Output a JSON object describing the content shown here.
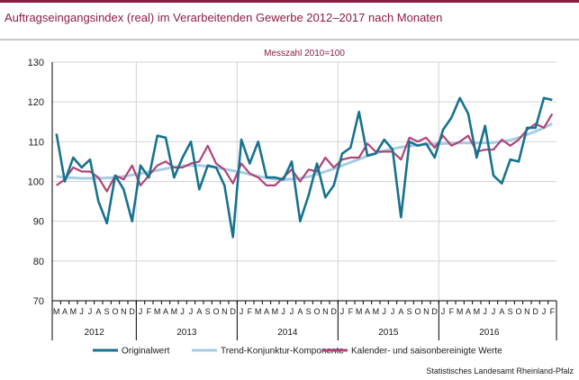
{
  "header": {
    "title": "Auftragseingangsindex (real) im Verarbeitenden Gewerbe 2012–2017 nach Monaten"
  },
  "source": "Statistisches Landesamt Rheinland-Pfalz",
  "colors": {
    "brand": "#8c1d40",
    "original": "#17728f",
    "trend": "#a8cde2",
    "seasonal": "#b04478"
  },
  "chart_data": {
    "type": "line",
    "subtitle": "Messzahl 2010=100",
    "ylim": [
      70,
      130
    ],
    "yticks": [
      70,
      80,
      90,
      100,
      110,
      120,
      130
    ],
    "grid": true,
    "legend_position": "bottom",
    "month_labels": [
      "M",
      "A",
      "M",
      "J",
      "J",
      "A",
      "S",
      "O",
      "N",
      "D",
      "J",
      "F",
      "M",
      "A",
      "M",
      "J",
      "J",
      "A",
      "S",
      "O",
      "N",
      "D",
      "J",
      "F",
      "M",
      "A",
      "M",
      "J",
      "J",
      "A",
      "S",
      "O",
      "N",
      "D",
      "J",
      "F",
      "M",
      "A",
      "M",
      "J",
      "J",
      "A",
      "S",
      "O",
      "N",
      "D",
      "J",
      "F",
      "M",
      "A",
      "M",
      "J",
      "J",
      "A",
      "S",
      "O",
      "N",
      "D",
      "J",
      "F"
    ],
    "year_labels": [
      {
        "label": "2012",
        "from": 0,
        "to": 9
      },
      {
        "label": "2013",
        "from": 10,
        "to": 21
      },
      {
        "label": "2014",
        "from": 22,
        "to": 33
      },
      {
        "label": "2015",
        "from": 34,
        "to": 45
      },
      {
        "label": "2016",
        "from": 46,
        "to": 57
      }
    ],
    "series": [
      {
        "name": "Originalwert",
        "values": [
          112.0,
          100.0,
          106.0,
          103.5,
          105.5,
          95.0,
          89.5,
          101.5,
          98.0,
          90.0,
          104.0,
          101.0,
          111.5,
          111.0,
          101.0,
          106.0,
          110.0,
          98.0,
          104.0,
          103.5,
          99.0,
          86.0,
          110.5,
          104.5,
          110.0,
          101.0,
          101.0,
          100.5,
          105.0,
          90.0,
          96.5,
          104.5,
          96.0,
          99.0,
          107.0,
          108.5,
          117.5,
          106.5,
          107.0,
          110.5,
          108.0,
          91.0,
          110.0,
          109.0,
          109.5,
          106.0,
          113.0,
          116.0,
          121.0,
          117.0,
          106.0,
          114.0,
          101.5,
          99.5,
          105.5,
          105.0,
          113.5,
          113.5,
          121.0,
          120.5
        ]
      },
      {
        "name": "Trend-Konjunktur-Komponente",
        "values": [
          101.3,
          101.0,
          100.9,
          100.8,
          100.8,
          100.8,
          100.9,
          101.0,
          101.3,
          101.6,
          102.0,
          102.4,
          102.8,
          103.2,
          103.6,
          103.9,
          104.0,
          104.0,
          103.8,
          103.5,
          103.1,
          102.7,
          102.3,
          101.8,
          101.3,
          100.9,
          100.6,
          100.5,
          100.6,
          100.8,
          101.2,
          101.8,
          102.5,
          103.2,
          104.0,
          104.8,
          105.6,
          106.4,
          107.1,
          107.7,
          108.2,
          108.6,
          108.9,
          109.1,
          109.3,
          109.4,
          109.5,
          109.6,
          109.7,
          109.7,
          109.7,
          109.7,
          109.8,
          110.0,
          110.4,
          111.0,
          111.8,
          112.6,
          113.5,
          114.5
        ]
      },
      {
        "name": "Kalender- und saisonbereinigte Werte",
        "values": [
          99.0,
          100.5,
          103.5,
          102.5,
          102.5,
          101.0,
          97.5,
          101.5,
          100.5,
          104.0,
          99.0,
          101.5,
          104.0,
          105.0,
          103.5,
          103.5,
          104.5,
          105.0,
          109.0,
          104.5,
          103.0,
          99.5,
          104.5,
          102.0,
          101.0,
          99.0,
          99.0,
          101.0,
          103.0,
          100.0,
          103.0,
          102.5,
          106.0,
          103.5,
          105.5,
          106.0,
          106.0,
          109.5,
          107.5,
          107.5,
          107.5,
          105.5,
          111.0,
          110.0,
          111.0,
          108.5,
          111.5,
          109.0,
          110.0,
          111.5,
          107.5,
          108.0,
          108.0,
          110.5,
          109.0,
          110.5,
          113.0,
          114.5,
          113.5,
          117.0
        ]
      }
    ]
  }
}
